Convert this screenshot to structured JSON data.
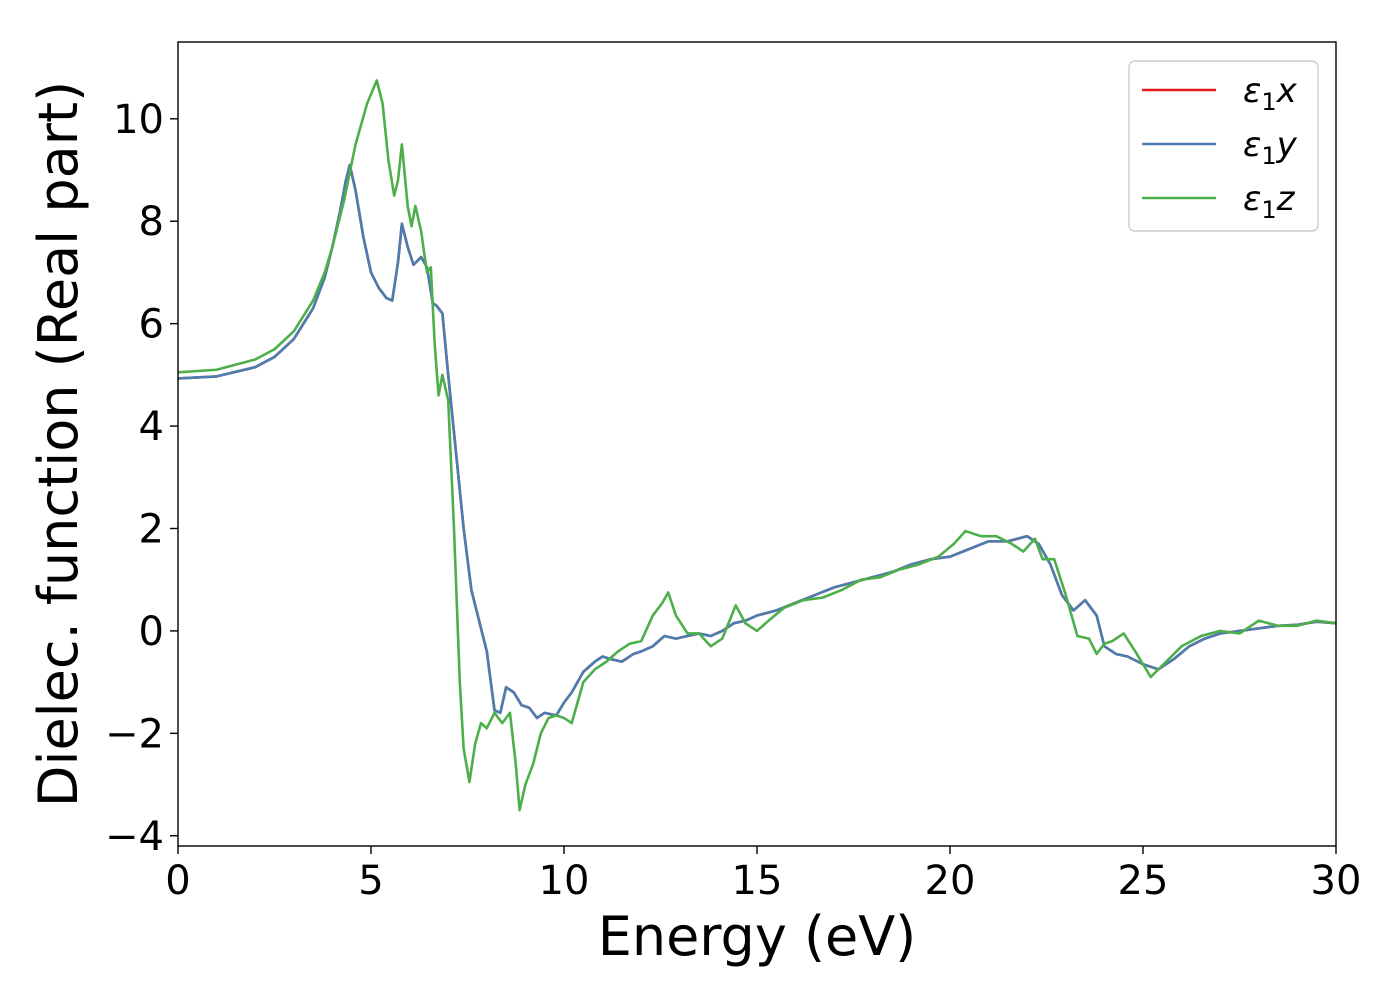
{
  "chart_data": {
    "type": "line",
    "xlabel": "Energy (eV)",
    "ylabel": "Dielec. function (Real part)",
    "xlim": [
      0,
      30
    ],
    "ylim": [
      -4.2,
      11.5
    ],
    "xticks": [
      0,
      5,
      10,
      15,
      20,
      25,
      30
    ],
    "yticks": [
      -4,
      -2,
      0,
      2,
      4,
      6,
      8,
      10
    ],
    "xtick_labels": [
      "0",
      "5",
      "10",
      "15",
      "20",
      "25",
      "30"
    ],
    "ytick_labels": [
      "−4",
      "−2",
      "0",
      "2",
      "4",
      "6",
      "8",
      "10"
    ],
    "grid": false,
    "legend_position": "top-right",
    "series": [
      {
        "name": "ε₁x",
        "label_base": "ε",
        "label_sub": "1",
        "label_var": "x",
        "color": "#e41a1c",
        "points": [
          [
            0,
            4.93
          ],
          [
            1,
            4.97
          ],
          [
            2,
            5.15
          ],
          [
            2.5,
            5.35
          ],
          [
            3,
            5.7
          ],
          [
            3.5,
            6.3
          ],
          [
            3.8,
            6.9
          ],
          [
            4.0,
            7.5
          ],
          [
            4.2,
            8.2
          ],
          [
            4.35,
            8.8
          ],
          [
            4.45,
            9.1
          ],
          [
            4.6,
            8.6
          ],
          [
            4.8,
            7.7
          ],
          [
            5.0,
            7.0
          ],
          [
            5.2,
            6.7
          ],
          [
            5.4,
            6.5
          ],
          [
            5.55,
            6.45
          ],
          [
            5.7,
            7.2
          ],
          [
            5.8,
            7.95
          ],
          [
            5.95,
            7.5
          ],
          [
            6.1,
            7.15
          ],
          [
            6.3,
            7.3
          ],
          [
            6.45,
            7.1
          ],
          [
            6.6,
            6.4
          ],
          [
            6.7,
            6.35
          ],
          [
            6.85,
            6.2
          ],
          [
            7.0,
            5.0
          ],
          [
            7.2,
            3.5
          ],
          [
            7.4,
            2.0
          ],
          [
            7.6,
            0.8
          ],
          [
            7.8,
            0.2
          ],
          [
            8.0,
            -0.4
          ],
          [
            8.2,
            -1.55
          ],
          [
            8.35,
            -1.6
          ],
          [
            8.5,
            -1.1
          ],
          [
            8.7,
            -1.2
          ],
          [
            8.9,
            -1.45
          ],
          [
            9.1,
            -1.5
          ],
          [
            9.3,
            -1.7
          ],
          [
            9.5,
            -1.6
          ],
          [
            9.8,
            -1.65
          ],
          [
            10.0,
            -1.4
          ],
          [
            10.2,
            -1.2
          ],
          [
            10.5,
            -0.8
          ],
          [
            10.8,
            -0.6
          ],
          [
            11.0,
            -0.5
          ],
          [
            11.2,
            -0.55
          ],
          [
            11.5,
            -0.6
          ],
          [
            11.8,
            -0.45
          ],
          [
            12.0,
            -0.4
          ],
          [
            12.3,
            -0.3
          ],
          [
            12.6,
            -0.1
          ],
          [
            12.9,
            -0.15
          ],
          [
            13.2,
            -0.1
          ],
          [
            13.5,
            -0.05
          ],
          [
            13.8,
            -0.1
          ],
          [
            14.1,
            0.0
          ],
          [
            14.4,
            0.15
          ],
          [
            14.7,
            0.2
          ],
          [
            15.0,
            0.3
          ],
          [
            15.5,
            0.4
          ],
          [
            16.0,
            0.55
          ],
          [
            16.5,
            0.7
          ],
          [
            17.0,
            0.85
          ],
          [
            17.5,
            0.95
          ],
          [
            18.0,
            1.05
          ],
          [
            18.5,
            1.15
          ],
          [
            19.0,
            1.3
          ],
          [
            19.5,
            1.4
          ],
          [
            20.0,
            1.45
          ],
          [
            20.5,
            1.6
          ],
          [
            21.0,
            1.75
          ],
          [
            21.5,
            1.75
          ],
          [
            22.0,
            1.85
          ],
          [
            22.3,
            1.7
          ],
          [
            22.6,
            1.3
          ],
          [
            22.9,
            0.7
          ],
          [
            23.2,
            0.4
          ],
          [
            23.5,
            0.6
          ],
          [
            23.8,
            0.3
          ],
          [
            24.0,
            -0.3
          ],
          [
            24.3,
            -0.45
          ],
          [
            24.6,
            -0.5
          ],
          [
            25.0,
            -0.65
          ],
          [
            25.4,
            -0.75
          ],
          [
            25.8,
            -0.55
          ],
          [
            26.2,
            -0.3
          ],
          [
            26.6,
            -0.15
          ],
          [
            27.0,
            -0.05
          ],
          [
            27.5,
            0.0
          ],
          [
            28.0,
            0.05
          ],
          [
            28.5,
            0.1
          ],
          [
            29.0,
            0.12
          ],
          [
            29.5,
            0.18
          ],
          [
            30.0,
            0.15
          ]
        ]
      },
      {
        "name": "ε₁y",
        "label_base": "ε",
        "label_sub": "1",
        "label_var": "y",
        "color": "#4a7eb0",
        "points": [
          [
            0,
            4.93
          ],
          [
            1,
            4.97
          ],
          [
            2,
            5.15
          ],
          [
            2.5,
            5.35
          ],
          [
            3,
            5.7
          ],
          [
            3.5,
            6.3
          ],
          [
            3.8,
            6.9
          ],
          [
            4.0,
            7.5
          ],
          [
            4.2,
            8.2
          ],
          [
            4.35,
            8.8
          ],
          [
            4.45,
            9.1
          ],
          [
            4.6,
            8.6
          ],
          [
            4.8,
            7.7
          ],
          [
            5.0,
            7.0
          ],
          [
            5.2,
            6.7
          ],
          [
            5.4,
            6.5
          ],
          [
            5.55,
            6.45
          ],
          [
            5.7,
            7.2
          ],
          [
            5.8,
            7.95
          ],
          [
            5.95,
            7.5
          ],
          [
            6.1,
            7.15
          ],
          [
            6.3,
            7.3
          ],
          [
            6.45,
            7.1
          ],
          [
            6.6,
            6.4
          ],
          [
            6.7,
            6.35
          ],
          [
            6.85,
            6.2
          ],
          [
            7.0,
            5.0
          ],
          [
            7.2,
            3.5
          ],
          [
            7.4,
            2.0
          ],
          [
            7.6,
            0.8
          ],
          [
            7.8,
            0.2
          ],
          [
            8.0,
            -0.4
          ],
          [
            8.2,
            -1.55
          ],
          [
            8.35,
            -1.6
          ],
          [
            8.5,
            -1.1
          ],
          [
            8.7,
            -1.2
          ],
          [
            8.9,
            -1.45
          ],
          [
            9.1,
            -1.5
          ],
          [
            9.3,
            -1.7
          ],
          [
            9.5,
            -1.6
          ],
          [
            9.8,
            -1.65
          ],
          [
            10.0,
            -1.4
          ],
          [
            10.2,
            -1.2
          ],
          [
            10.5,
            -0.8
          ],
          [
            10.8,
            -0.6
          ],
          [
            11.0,
            -0.5
          ],
          [
            11.2,
            -0.55
          ],
          [
            11.5,
            -0.6
          ],
          [
            11.8,
            -0.45
          ],
          [
            12.0,
            -0.4
          ],
          [
            12.3,
            -0.3
          ],
          [
            12.6,
            -0.1
          ],
          [
            12.9,
            -0.15
          ],
          [
            13.2,
            -0.1
          ],
          [
            13.5,
            -0.05
          ],
          [
            13.8,
            -0.1
          ],
          [
            14.1,
            0.0
          ],
          [
            14.4,
            0.15
          ],
          [
            14.7,
            0.2
          ],
          [
            15.0,
            0.3
          ],
          [
            15.5,
            0.4
          ],
          [
            16.0,
            0.55
          ],
          [
            16.5,
            0.7
          ],
          [
            17.0,
            0.85
          ],
          [
            17.5,
            0.95
          ],
          [
            18.0,
            1.05
          ],
          [
            18.5,
            1.15
          ],
          [
            19.0,
            1.3
          ],
          [
            19.5,
            1.4
          ],
          [
            20.0,
            1.45
          ],
          [
            20.5,
            1.6
          ],
          [
            21.0,
            1.75
          ],
          [
            21.5,
            1.75
          ],
          [
            22.0,
            1.85
          ],
          [
            22.3,
            1.7
          ],
          [
            22.6,
            1.3
          ],
          [
            22.9,
            0.7
          ],
          [
            23.2,
            0.4
          ],
          [
            23.5,
            0.6
          ],
          [
            23.8,
            0.3
          ],
          [
            24.0,
            -0.3
          ],
          [
            24.3,
            -0.45
          ],
          [
            24.6,
            -0.5
          ],
          [
            25.0,
            -0.65
          ],
          [
            25.4,
            -0.75
          ],
          [
            25.8,
            -0.55
          ],
          [
            26.2,
            -0.3
          ],
          [
            26.6,
            -0.15
          ],
          [
            27.0,
            -0.05
          ],
          [
            27.5,
            0.0
          ],
          [
            28.0,
            0.05
          ],
          [
            28.5,
            0.1
          ],
          [
            29.0,
            0.12
          ],
          [
            29.5,
            0.18
          ],
          [
            30.0,
            0.15
          ]
        ]
      },
      {
        "name": "ε₁z",
        "label_base": "ε",
        "label_sub": "1",
        "label_var": "z",
        "color": "#4daf4a",
        "points": [
          [
            0,
            5.05
          ],
          [
            1,
            5.1
          ],
          [
            2,
            5.3
          ],
          [
            2.5,
            5.5
          ],
          [
            3,
            5.85
          ],
          [
            3.5,
            6.45
          ],
          [
            3.8,
            7.0
          ],
          [
            4.0,
            7.5
          ],
          [
            4.3,
            8.4
          ],
          [
            4.6,
            9.5
          ],
          [
            4.9,
            10.3
          ],
          [
            5.15,
            10.75
          ],
          [
            5.3,
            10.3
          ],
          [
            5.45,
            9.2
          ],
          [
            5.6,
            8.5
          ],
          [
            5.7,
            8.8
          ],
          [
            5.8,
            9.5
          ],
          [
            5.95,
            8.3
          ],
          [
            6.05,
            7.9
          ],
          [
            6.15,
            8.3
          ],
          [
            6.3,
            7.8
          ],
          [
            6.45,
            7.0
          ],
          [
            6.55,
            7.1
          ],
          [
            6.65,
            5.6
          ],
          [
            6.75,
            4.6
          ],
          [
            6.85,
            5.0
          ],
          [
            7.0,
            4.5
          ],
          [
            7.15,
            2.0
          ],
          [
            7.3,
            -1.0
          ],
          [
            7.4,
            -2.3
          ],
          [
            7.55,
            -2.95
          ],
          [
            7.7,
            -2.2
          ],
          [
            7.85,
            -1.8
          ],
          [
            8.0,
            -1.9
          ],
          [
            8.2,
            -1.6
          ],
          [
            8.4,
            -1.8
          ],
          [
            8.6,
            -1.6
          ],
          [
            8.75,
            -2.6
          ],
          [
            8.85,
            -3.5
          ],
          [
            9.0,
            -3.0
          ],
          [
            9.2,
            -2.6
          ],
          [
            9.4,
            -2.0
          ],
          [
            9.6,
            -1.7
          ],
          [
            9.8,
            -1.65
          ],
          [
            10.0,
            -1.7
          ],
          [
            10.2,
            -1.8
          ],
          [
            10.5,
            -1.0
          ],
          [
            10.8,
            -0.75
          ],
          [
            11.1,
            -0.6
          ],
          [
            11.4,
            -0.4
          ],
          [
            11.7,
            -0.25
          ],
          [
            12.0,
            -0.2
          ],
          [
            12.3,
            0.3
          ],
          [
            12.55,
            0.55
          ],
          [
            12.7,
            0.75
          ],
          [
            12.9,
            0.3
          ],
          [
            13.2,
            -0.05
          ],
          [
            13.5,
            -0.05
          ],
          [
            13.8,
            -0.3
          ],
          [
            14.1,
            -0.15
          ],
          [
            14.45,
            0.5
          ],
          [
            14.7,
            0.15
          ],
          [
            15.0,
            0.0
          ],
          [
            15.3,
            0.2
          ],
          [
            15.7,
            0.45
          ],
          [
            16.2,
            0.6
          ],
          [
            16.7,
            0.65
          ],
          [
            17.2,
            0.8
          ],
          [
            17.7,
            1.0
          ],
          [
            18.2,
            1.05
          ],
          [
            18.7,
            1.2
          ],
          [
            19.2,
            1.3
          ],
          [
            19.7,
            1.45
          ],
          [
            20.1,
            1.7
          ],
          [
            20.4,
            1.95
          ],
          [
            20.8,
            1.85
          ],
          [
            21.2,
            1.85
          ],
          [
            21.6,
            1.7
          ],
          [
            21.9,
            1.55
          ],
          [
            22.2,
            1.8
          ],
          [
            22.4,
            1.4
          ],
          [
            22.7,
            1.4
          ],
          [
            23.0,
            0.7
          ],
          [
            23.3,
            -0.1
          ],
          [
            23.6,
            -0.15
          ],
          [
            23.8,
            -0.45
          ],
          [
            24.0,
            -0.25
          ],
          [
            24.2,
            -0.2
          ],
          [
            24.5,
            -0.05
          ],
          [
            24.8,
            -0.4
          ],
          [
            25.2,
            -0.9
          ],
          [
            25.6,
            -0.6
          ],
          [
            26.0,
            -0.3
          ],
          [
            26.5,
            -0.1
          ],
          [
            27.0,
            0.0
          ],
          [
            27.5,
            -0.05
          ],
          [
            28.0,
            0.2
          ],
          [
            28.5,
            0.1
          ],
          [
            29.0,
            0.1
          ],
          [
            29.5,
            0.2
          ],
          [
            30.0,
            0.15
          ]
        ]
      }
    ]
  }
}
